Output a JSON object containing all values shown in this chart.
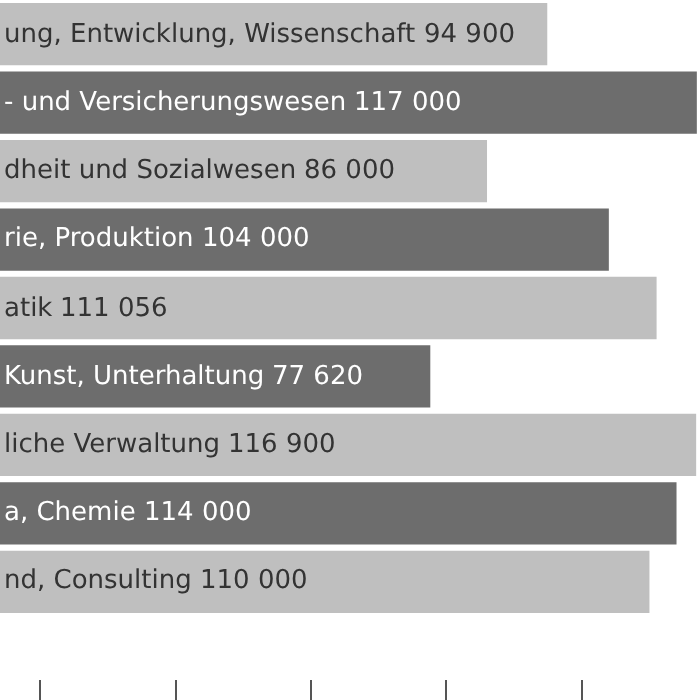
{
  "chart_data": {
    "type": "bar",
    "orientation": "horizontal",
    "categories": [
      "ung, Entwicklung, Wissenschaft",
      "- und Versicherungswesen",
      "dheit und Sozialwesen",
      "rie, Produktion",
      "atik",
      "Kunst, Unterhaltung",
      "liche Verwaltung",
      "a, Chemie",
      "nd, Consulting"
    ],
    "values": [
      94900,
      117000,
      86000,
      104000,
      111056,
      77620,
      116900,
      114000,
      110000
    ],
    "value_labels": [
      "94 900",
      "117 000",
      "86 000",
      "104 000",
      "111 056",
      "77 620",
      "116 900",
      "114 000",
      "110 000"
    ],
    "colors": [
      "#bfbfbf",
      "#6d6d6d",
      "#bfbfbf",
      "#6d6d6d",
      "#bfbfbf",
      "#6d6d6d",
      "#bfbfbf",
      "#6d6d6d",
      "#bfbfbf"
    ],
    "tick_labels": false
  }
}
